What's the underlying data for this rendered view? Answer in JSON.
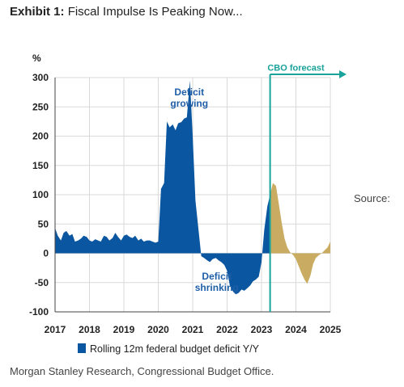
{
  "header": {
    "exhibit_label": "Exhibit 1:",
    "title": "Fiscal Impulse Is Peaking Now..."
  },
  "source": {
    "label": "Source:",
    "text": "Morgan Stanley Research, Congressional Budget Office."
  },
  "colors": {
    "actual": "#0a56a0",
    "forecast": "#c9ac62",
    "forecast_line": "#1aa39a",
    "grid": "#d9d9d9"
  },
  "chart_data": {
    "type": "area",
    "title": "",
    "ylabel": "%",
    "xlabel": "",
    "ylim": [
      -100,
      300
    ],
    "xlim": [
      2017,
      2025
    ],
    "grid": true,
    "y_ticks": [
      "300",
      "250",
      "200",
      "150",
      "100",
      "50",
      "0",
      "-50",
      "-100"
    ],
    "x_ticks": [
      "2017",
      "2018",
      "2019",
      "2020",
      "2021",
      "2022",
      "2023",
      "2024",
      "2025"
    ],
    "legend": "bottom",
    "series": [
      {
        "name": "Rolling 12m federal budget deficit Y/Y",
        "x": [
          2017.0,
          2017.08,
          2017.17,
          2017.25,
          2017.33,
          2017.42,
          2017.5,
          2017.58,
          2017.67,
          2017.75,
          2017.83,
          2017.92,
          2018.0,
          2018.08,
          2018.17,
          2018.25,
          2018.33,
          2018.42,
          2018.5,
          2018.58,
          2018.67,
          2018.75,
          2018.83,
          2018.92,
          2019.0,
          2019.08,
          2019.17,
          2019.25,
          2019.33,
          2019.42,
          2019.5,
          2019.58,
          2019.67,
          2019.75,
          2019.83,
          2019.92,
          2020.0,
          2020.08,
          2020.17,
          2020.25,
          2020.33,
          2020.42,
          2020.5,
          2020.58,
          2020.67,
          2020.75,
          2020.83,
          2020.92,
          2021.0,
          2021.08,
          2021.17,
          2021.25,
          2021.33,
          2021.42,
          2021.5,
          2021.58,
          2021.67,
          2021.75,
          2021.83,
          2021.92,
          2022.0,
          2022.08,
          2022.17,
          2022.25,
          2022.33,
          2022.42,
          2022.5,
          2022.58,
          2022.67,
          2022.75,
          2022.83,
          2022.92,
          2023.0,
          2023.08,
          2023.17,
          2023.25
        ],
        "values": [
          43,
          30,
          22,
          35,
          38,
          30,
          33,
          20,
          22,
          25,
          30,
          28,
          22,
          20,
          24,
          22,
          20,
          30,
          28,
          22,
          26,
          35,
          28,
          22,
          30,
          32,
          28,
          26,
          30,
          22,
          25,
          20,
          22,
          22,
          20,
          18,
          20,
          110,
          120,
          225,
          215,
          220,
          210,
          222,
          224,
          230,
          232,
          295,
          200,
          90,
          40,
          -5,
          -8,
          -12,
          -15,
          -10,
          -8,
          -12,
          -15,
          -20,
          -30,
          -55,
          -65,
          -70,
          -68,
          -62,
          -64,
          -60,
          -55,
          -48,
          -45,
          -40,
          -15,
          40,
          80,
          100
        ]
      },
      {
        "name": "CBO forecast",
        "x": [
          2023.25,
          2023.33,
          2023.42,
          2023.5,
          2023.58,
          2023.67,
          2023.75,
          2023.83,
          2023.92,
          2024.0,
          2024.08,
          2024.17,
          2024.25,
          2024.33,
          2024.42,
          2024.5,
          2024.58,
          2024.67,
          2024.75,
          2024.83,
          2024.92,
          2025.0
        ],
        "values": [
          100,
          120,
          115,
          85,
          55,
          25,
          10,
          2,
          -3,
          -10,
          -22,
          -35,
          -45,
          -52,
          -38,
          -18,
          -8,
          -3,
          0,
          5,
          10,
          20
        ]
      }
    ],
    "forecast_start": 2023.25,
    "annotations": [
      {
        "text_lines": [
          "Deficit",
          "growing"
        ],
        "x": 2020.9,
        "y": 270
      },
      {
        "text_lines": [
          "Deficit",
          "shrinking"
        ],
        "x": 2021.7,
        "y": -45
      },
      {
        "text_lines": [
          "CBO forecast"
        ],
        "x": 2024.0,
        "y": 312
      }
    ]
  }
}
